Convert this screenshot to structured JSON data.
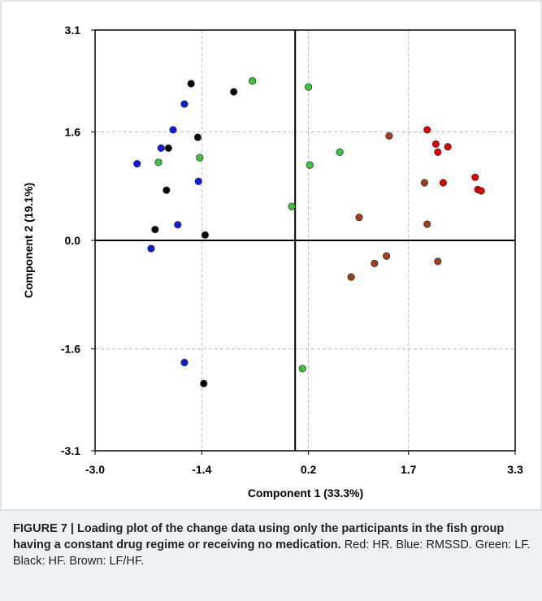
{
  "chart_data": {
    "type": "scatter",
    "x_label": "Component 1 (33.3%)",
    "y_label": "Component 2 (19.1%)",
    "xlim": [
      -3.0,
      3.3
    ],
    "ylim": [
      -3.1,
      3.1
    ],
    "xticks": [
      {
        "value": -3,
        "label": "-3.0"
      },
      -1.4,
      0.2,
      1.7,
      3.3
    ],
    "yticks": [
      -3.1,
      -1.6,
      {
        "value": 0,
        "label": "0.0"
      },
      1.6,
      3.1
    ],
    "grid": true,
    "series": [
      {
        "color": "#e00000",
        "x": [
          1.98,
          2.11,
          2.14,
          2.29,
          2.7,
          2.22,
          2.74,
          2.79
        ],
        "values": [
          1.63,
          1.42,
          1.3,
          1.38,
          0.93,
          0.85,
          0.75,
          0.73
        ]
      },
      {
        "color": "#0a1ee0",
        "x": [
          -2.37,
          -2.01,
          -1.83,
          -1.66,
          -1.45,
          -1.76,
          -2.16,
          -1.66
        ],
        "values": [
          1.13,
          1.36,
          1.63,
          2.01,
          0.87,
          0.23,
          -0.12,
          -1.8
        ]
      },
      {
        "color": "#3cc43c",
        "x": [
          -0.64,
          0.2,
          0.67,
          -1.43,
          -2.05,
          0.22,
          -0.05,
          0.11
        ],
        "values": [
          2.35,
          2.26,
          1.3,
          1.22,
          1.15,
          1.11,
          0.5,
          -1.89
        ]
      },
      {
        "color": "#000000",
        "x": [
          -1.56,
          -0.92,
          -1.9,
          -1.46,
          -1.93,
          -2.1,
          -1.35,
          -1.37
        ],
        "values": [
          2.31,
          2.19,
          1.36,
          1.52,
          0.74,
          0.16,
          0.08,
          -2.11
        ]
      },
      {
        "color": "#a0401a",
        "x": [
          1.41,
          1.94,
          0.96,
          1.98,
          1.37,
          1.19,
          2.14,
          0.84
        ],
        "values": [
          1.54,
          0.85,
          0.34,
          0.24,
          -0.23,
          -0.34,
          -0.31,
          -0.54
        ]
      }
    ]
  },
  "caption": {
    "bold": "FIGURE 7 | Loading plot of the change data using only the participants in the fish group having a constant drug regime or receiving no medication.",
    "text": "Red: HR. Blue: RMSSD. Green: LF. Black: HF. Brown: LF/HF."
  }
}
